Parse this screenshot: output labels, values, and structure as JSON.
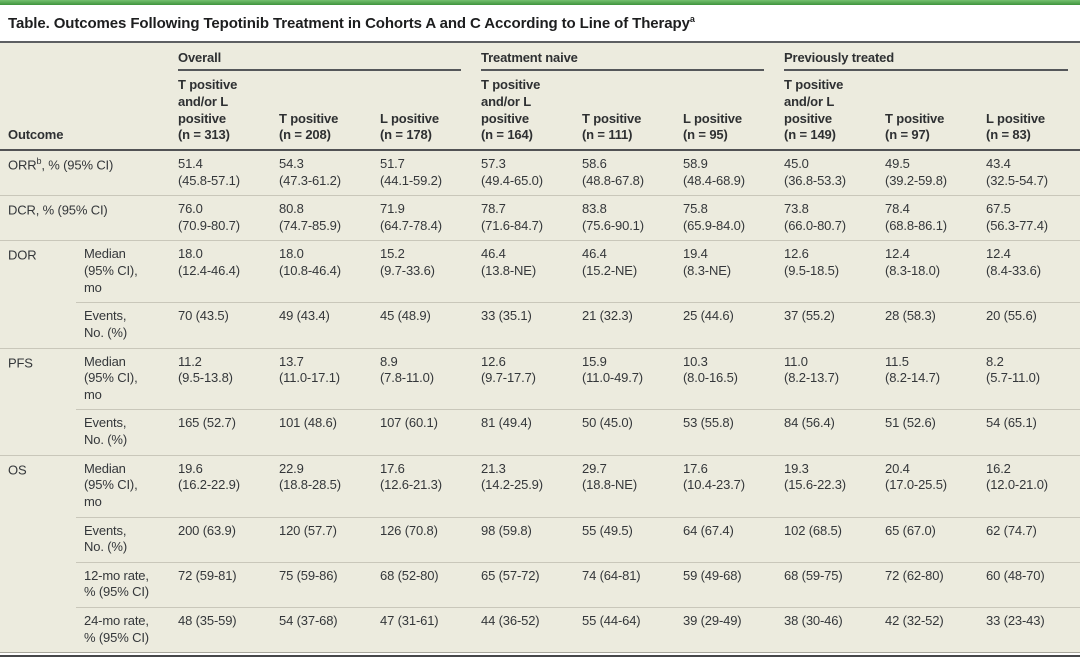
{
  "accent_color": "#4aa047",
  "background_color": "#ecebde",
  "title": {
    "text": "Table. Outcomes Following Tepotinib Treatment in Cohorts A and C According to Line of Therapy",
    "superscript": "a"
  },
  "table": {
    "outcome_header": "Outcome",
    "groups": [
      {
        "label": "Overall",
        "columns": [
          "T positive\nand/or L\npositive\n(n = 313)",
          "T positive\n(n = 208)",
          "L positive\n(n = 178)"
        ]
      },
      {
        "label": "Treatment naive",
        "columns": [
          "T positive\nand/or L\npositive\n(n = 164)",
          "T positive\n(n = 111)",
          "L positive\n(n = 95)"
        ]
      },
      {
        "label": "Previously treated",
        "columns": [
          "T positive\nand/or L\npositive\n(n = 149)",
          "T positive\n(n = 97)",
          "L positive\n(n = 83)"
        ]
      }
    ],
    "sections": [
      {
        "label": "ORR",
        "label_sup": "b",
        "label_suffix": ", % (95% CI)",
        "rows": [
          {
            "sub": "",
            "values": [
              "51.4\n(45.8-57.1)",
              "54.3\n(47.3-61.2)",
              "51.7\n(44.1-59.2)",
              "57.3\n(49.4-65.0)",
              "58.6\n(48.8-67.8)",
              "58.9\n(48.4-68.9)",
              "45.0\n(36.8-53.3)",
              "49.5\n(39.2-59.8)",
              "43.4\n(32.5-54.7)"
            ]
          }
        ]
      },
      {
        "label": "DCR",
        "label_sup": "",
        "label_suffix": ", % (95% CI)",
        "rows": [
          {
            "sub": "",
            "values": [
              "76.0\n(70.9-80.7)",
              "80.8\n(74.7-85.9)",
              "71.9\n(64.7-78.4)",
              "78.7\n(71.6-84.7)",
              "83.8\n(75.6-90.1)",
              "75.8\n(65.9-84.0)",
              "73.8\n(66.0-80.7)",
              "78.4\n(68.8-86.1)",
              "67.5\n(56.3-77.4)"
            ]
          }
        ]
      },
      {
        "label": "DOR",
        "label_sup": "",
        "label_suffix": "",
        "rows": [
          {
            "sub": "Median\n(95% CI),\nmo",
            "values": [
              "18.0\n(12.4-46.4)",
              "18.0\n(10.8-46.4)",
              "15.2\n(9.7-33.6)",
              "46.4\n(13.8-NE)",
              "46.4\n(15.2-NE)",
              "19.4\n(8.3-NE)",
              "12.6\n(9.5-18.5)",
              "12.4\n(8.3-18.0)",
              "12.4\n(8.4-33.6)"
            ]
          },
          {
            "sub": "Events,\nNo. (%)",
            "values": [
              "70 (43.5)",
              "49 (43.4)",
              "45 (48.9)",
              "33 (35.1)",
              "21 (32.3)",
              "25 (44.6)",
              "37 (55.2)",
              "28 (58.3)",
              "20 (55.6)"
            ]
          }
        ]
      },
      {
        "label": "PFS",
        "label_sup": "",
        "label_suffix": "",
        "rows": [
          {
            "sub": "Median\n(95% CI),\nmo",
            "values": [
              "11.2\n(9.5-13.8)",
              "13.7\n(11.0-17.1)",
              "8.9\n(7.8-11.0)",
              "12.6\n(9.7-17.7)",
              "15.9\n(11.0-49.7)",
              "10.3\n(8.0-16.5)",
              "11.0\n(8.2-13.7)",
              "11.5\n(8.2-14.7)",
              "8.2\n(5.7-11.0)"
            ]
          },
          {
            "sub": "Events,\nNo. (%)",
            "values": [
              "165 (52.7)",
              "101 (48.6)",
              "107 (60.1)",
              "81 (49.4)",
              "50 (45.0)",
              "53 (55.8)",
              "84 (56.4)",
              "51 (52.6)",
              "54 (65.1)"
            ]
          }
        ]
      },
      {
        "label": "OS",
        "label_sup": "",
        "label_suffix": "",
        "rows": [
          {
            "sub": "Median\n(95% CI),\nmo",
            "values": [
              "19.6\n(16.2-22.9)",
              "22.9\n(18.8-28.5)",
              "17.6\n(12.6-21.3)",
              "21.3\n(14.2-25.9)",
              "29.7\n(18.8-NE)",
              "17.6\n(10.4-23.7)",
              "19.3\n(15.6-22.3)",
              "20.4\n(17.0-25.5)",
              "16.2\n(12.0-21.0)"
            ]
          },
          {
            "sub": "Events,\nNo. (%)",
            "values": [
              "200 (63.9)",
              "120 (57.7)",
              "126 (70.8)",
              "98 (59.8)",
              "55 (49.5)",
              "64 (67.4)",
              "102 (68.5)",
              "65 (67.0)",
              "62 (74.7)"
            ]
          },
          {
            "sub": "12-mo rate,\n% (95% CI)",
            "values": [
              "72 (59-81)",
              "75 (59-86)",
              "68 (52-80)",
              "65 (57-72)",
              "74 (64-81)",
              "59 (49-68)",
              "68 (59-75)",
              "72 (62-80)",
              "60 (48-70)"
            ]
          },
          {
            "sub": "24-mo rate,\n% (95% CI)",
            "values": [
              "48 (35-59)",
              "54 (37-68)",
              "47 (31-61)",
              "44 (36-52)",
              "55 (44-64)",
              "39 (29-49)",
              "38 (30-46)",
              "42 (32-52)",
              "33 (23-43)"
            ]
          }
        ]
      }
    ]
  }
}
